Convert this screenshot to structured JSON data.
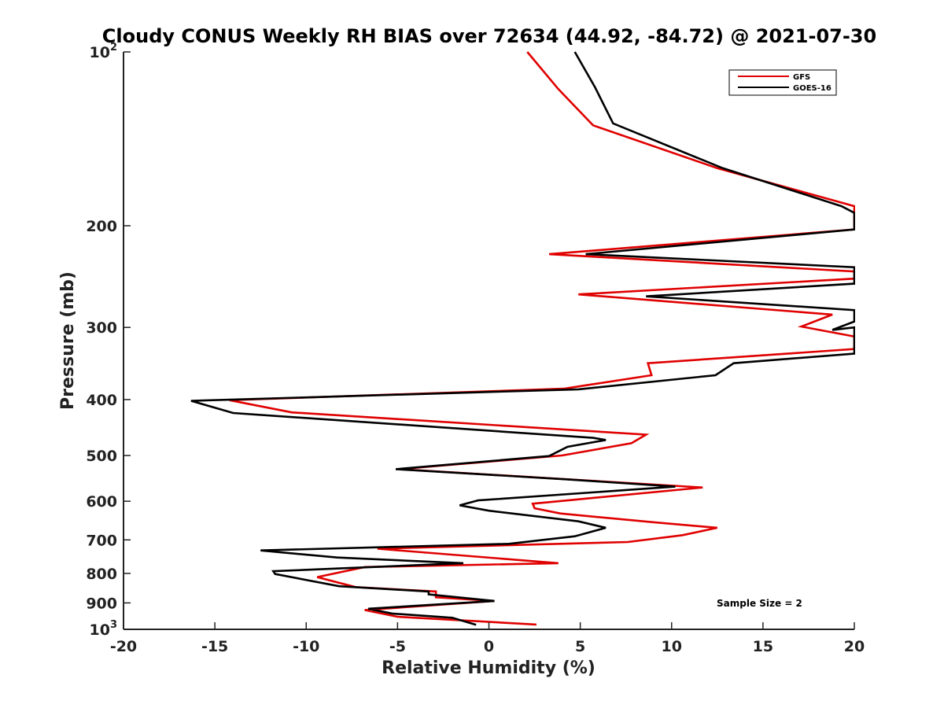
{
  "chart_data": {
    "type": "line",
    "title": "Cloudy CONUS Weekly RH BIAS over 72634 (44.92, -84.72) @ 2021-07-30",
    "xlabel": "Relative Humidity (%)",
    "ylabel": "Pressure (mb)",
    "xlim": [
      -20,
      20
    ],
    "ylim": [
      100,
      1000
    ],
    "y_scale": "log",
    "y_direction": "reversed",
    "x_ticks": [
      "-20",
      "-15",
      "-10",
      "-5",
      "0",
      "5",
      "10",
      "15",
      "20"
    ],
    "x_tick_values": [
      -20,
      -15,
      -10,
      -5,
      0,
      5,
      10,
      15,
      20
    ],
    "y_ticks": [
      {
        "value": 100,
        "base": "10",
        "exp": "2"
      },
      {
        "value": 200,
        "label": "200"
      },
      {
        "value": 300,
        "label": "300"
      },
      {
        "value": 400,
        "label": "400"
      },
      {
        "value": 500,
        "label": "500"
      },
      {
        "value": 600,
        "label": "600"
      },
      {
        "value": 700,
        "label": "700"
      },
      {
        "value": 800,
        "label": "800"
      },
      {
        "value": 900,
        "label": "900"
      },
      {
        "value": 1000,
        "base": "10",
        "exp": "3"
      }
    ],
    "grid": false,
    "legend_position": "top-right",
    "annotation": "Sample Size = 2",
    "series": [
      {
        "name": "GFS",
        "color": "#e00000",
        "points": [
          [
            2.1,
            100
          ],
          [
            3.8,
            116
          ],
          [
            5.7,
            134
          ],
          [
            12.5,
            159
          ],
          [
            20.0,
            185
          ],
          [
            20.0,
            203
          ],
          [
            3.3,
            224
          ],
          [
            20.0,
            240
          ],
          [
            20.0,
            247
          ],
          [
            4.9,
            263
          ],
          [
            18.8,
            285
          ],
          [
            17.1,
            299
          ],
          [
            20.0,
            311
          ],
          [
            20.0,
            327
          ],
          [
            8.7,
            346
          ],
          [
            8.9,
            363
          ],
          [
            4.1,
            383
          ],
          [
            -14.2,
            401
          ],
          [
            -10.8,
            421
          ],
          [
            8.6,
            460
          ],
          [
            7.8,
            476
          ],
          [
            4.0,
            500
          ],
          [
            -4.9,
            528
          ],
          [
            11.7,
            568
          ],
          [
            2.4,
            606
          ],
          [
            2.5,
            617
          ],
          [
            3.9,
            630
          ],
          [
            9.1,
            653
          ],
          [
            12.5,
            667
          ],
          [
            10.6,
            687
          ],
          [
            7.6,
            706
          ],
          [
            -6.1,
            725
          ],
          [
            3.8,
            768
          ],
          [
            -6.8,
            780
          ],
          [
            -9.4,
            812
          ],
          [
            -7.3,
            845
          ],
          [
            -2.9,
            860
          ],
          [
            -2.9,
            880
          ],
          [
            0.3,
            893
          ],
          [
            -6.8,
            926
          ],
          [
            -5.0,
            951
          ],
          [
            2.6,
            981
          ]
        ]
      },
      {
        "name": "GOES-16",
        "color": "#000000",
        "points": [
          [
            4.7,
            100
          ],
          [
            5.8,
            115
          ],
          [
            6.8,
            133
          ],
          [
            12.8,
            159
          ],
          [
            19.3,
            185
          ],
          [
            20.0,
            190
          ],
          [
            20.0,
            203
          ],
          [
            5.3,
            224
          ],
          [
            20.0,
            236
          ],
          [
            20.0,
            252
          ],
          [
            8.6,
            265
          ],
          [
            20.0,
            280
          ],
          [
            20.0,
            293
          ],
          [
            18.8,
            303
          ],
          [
            20.0,
            300
          ],
          [
            20.0,
            333
          ],
          [
            13.4,
            346
          ],
          [
            12.4,
            363
          ],
          [
            4.9,
            384
          ],
          [
            -16.3,
            402
          ],
          [
            -14.0,
            422
          ],
          [
            5.7,
            466
          ],
          [
            6.4,
            470
          ],
          [
            4.3,
            483
          ],
          [
            3.3,
            501
          ],
          [
            -5.1,
            528
          ],
          [
            4.3,
            550
          ],
          [
            10.2,
            566
          ],
          [
            -0.6,
            598
          ],
          [
            -1.6,
            610
          ],
          [
            0.0,
            623
          ],
          [
            4.9,
            650
          ],
          [
            6.4,
            667
          ],
          [
            4.7,
            690
          ],
          [
            1.1,
            711
          ],
          [
            -12.5,
            730
          ],
          [
            -8.3,
            751
          ],
          [
            -1.4,
            768
          ],
          [
            -11.8,
            793
          ],
          [
            -11.7,
            802
          ],
          [
            -8.2,
            842
          ],
          [
            -3.3,
            860
          ],
          [
            -3.3,
            870
          ],
          [
            0.3,
            893
          ],
          [
            -6.6,
            921
          ],
          [
            -5.3,
            939
          ],
          [
            -2.0,
            955
          ],
          [
            -0.7,
            982
          ]
        ]
      }
    ]
  }
}
